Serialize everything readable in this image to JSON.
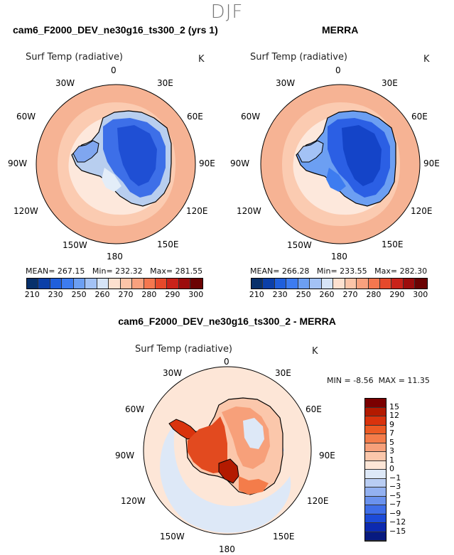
{
  "season": "DJF",
  "panels": [
    {
      "title": "cam6_F2000_DEV_ne30g16_ts300_2 (yrs 1)",
      "field": "Surf Temp (radiative)",
      "unit": "K",
      "lon_labels": [
        "0",
        "30E",
        "60E",
        "90E",
        "120E",
        "150E",
        "180",
        "150W",
        "120W",
        "90W",
        "60W",
        "30W"
      ],
      "stats": {
        "mean_label": "MEAN=",
        "mean": "267.15",
        "min_label": "Min=",
        "min": "232.32",
        "max_label": "Max=",
        "max": "281.55"
      },
      "colorbar": {
        "colors": [
          "#08306b",
          "#0b3fa8",
          "#1f5fdc",
          "#3d7cf0",
          "#6c9ff2",
          "#a3c2f5",
          "#d6e4f7",
          "#fde0cf",
          "#fcc4a8",
          "#f9a17e",
          "#f4774f",
          "#e6492b",
          "#c9221a",
          "#9c0d0d",
          "#6b0303"
        ],
        "ticks": [
          "210",
          "230",
          "250",
          "260",
          "270",
          "280",
          "290",
          "300"
        ]
      }
    },
    {
      "title": "MERRA",
      "field": "Surf Temp (radiative)",
      "unit": "K",
      "lon_labels": [
        "0",
        "30E",
        "60E",
        "90E",
        "120E",
        "150E",
        "180",
        "150W",
        "120W",
        "90W",
        "60W",
        "30W"
      ],
      "stats": {
        "mean_label": "MEAN=",
        "mean": "266.28",
        "min_label": "Min=",
        "min": "233.55",
        "max_label": "Max=",
        "max": "282.30"
      },
      "colorbar": {
        "colors": [
          "#08306b",
          "#0b3fa8",
          "#1f5fdc",
          "#3d7cf0",
          "#6c9ff2",
          "#a3c2f5",
          "#d6e4f7",
          "#fde0cf",
          "#fcc4a8",
          "#f9a17e",
          "#f4774f",
          "#e6492b",
          "#c9221a",
          "#9c0d0d",
          "#6b0303"
        ],
        "ticks": [
          "210",
          "230",
          "250",
          "260",
          "270",
          "280",
          "290",
          "300"
        ]
      }
    }
  ],
  "diff": {
    "title": "cam6_F2000_DEV_ne30g16_ts300_2 - MERRA",
    "field": "Surf Temp (radiative)",
    "unit": "K",
    "lon_labels": [
      "0",
      "30E",
      "60E",
      "90E",
      "120E",
      "150E",
      "180",
      "150W",
      "120W",
      "90W",
      "60W",
      "30W"
    ],
    "minmax": {
      "min_label": "MIN =",
      "min": "-8.56",
      "max_label": "MAX =",
      "max": "11.35"
    },
    "colorbar": {
      "colors": [
        "#7a0000",
        "#b31a00",
        "#d9330d",
        "#ec5a24",
        "#f47c4a",
        "#f7a07a",
        "#fbc7ab",
        "#fde6d7",
        "#dde8f7",
        "#b9cdf3",
        "#93b1f1",
        "#6a92ee",
        "#3f6ee8",
        "#1c4bd8",
        "#0c2ab0",
        "#071a80"
      ],
      "ticks": [
        "15",
        "12",
        "9",
        "7",
        "5",
        "3",
        "1",
        "0",
        "−1",
        "−3",
        "−5",
        "−7",
        "−9",
        "−12",
        "−15"
      ]
    }
  }
}
